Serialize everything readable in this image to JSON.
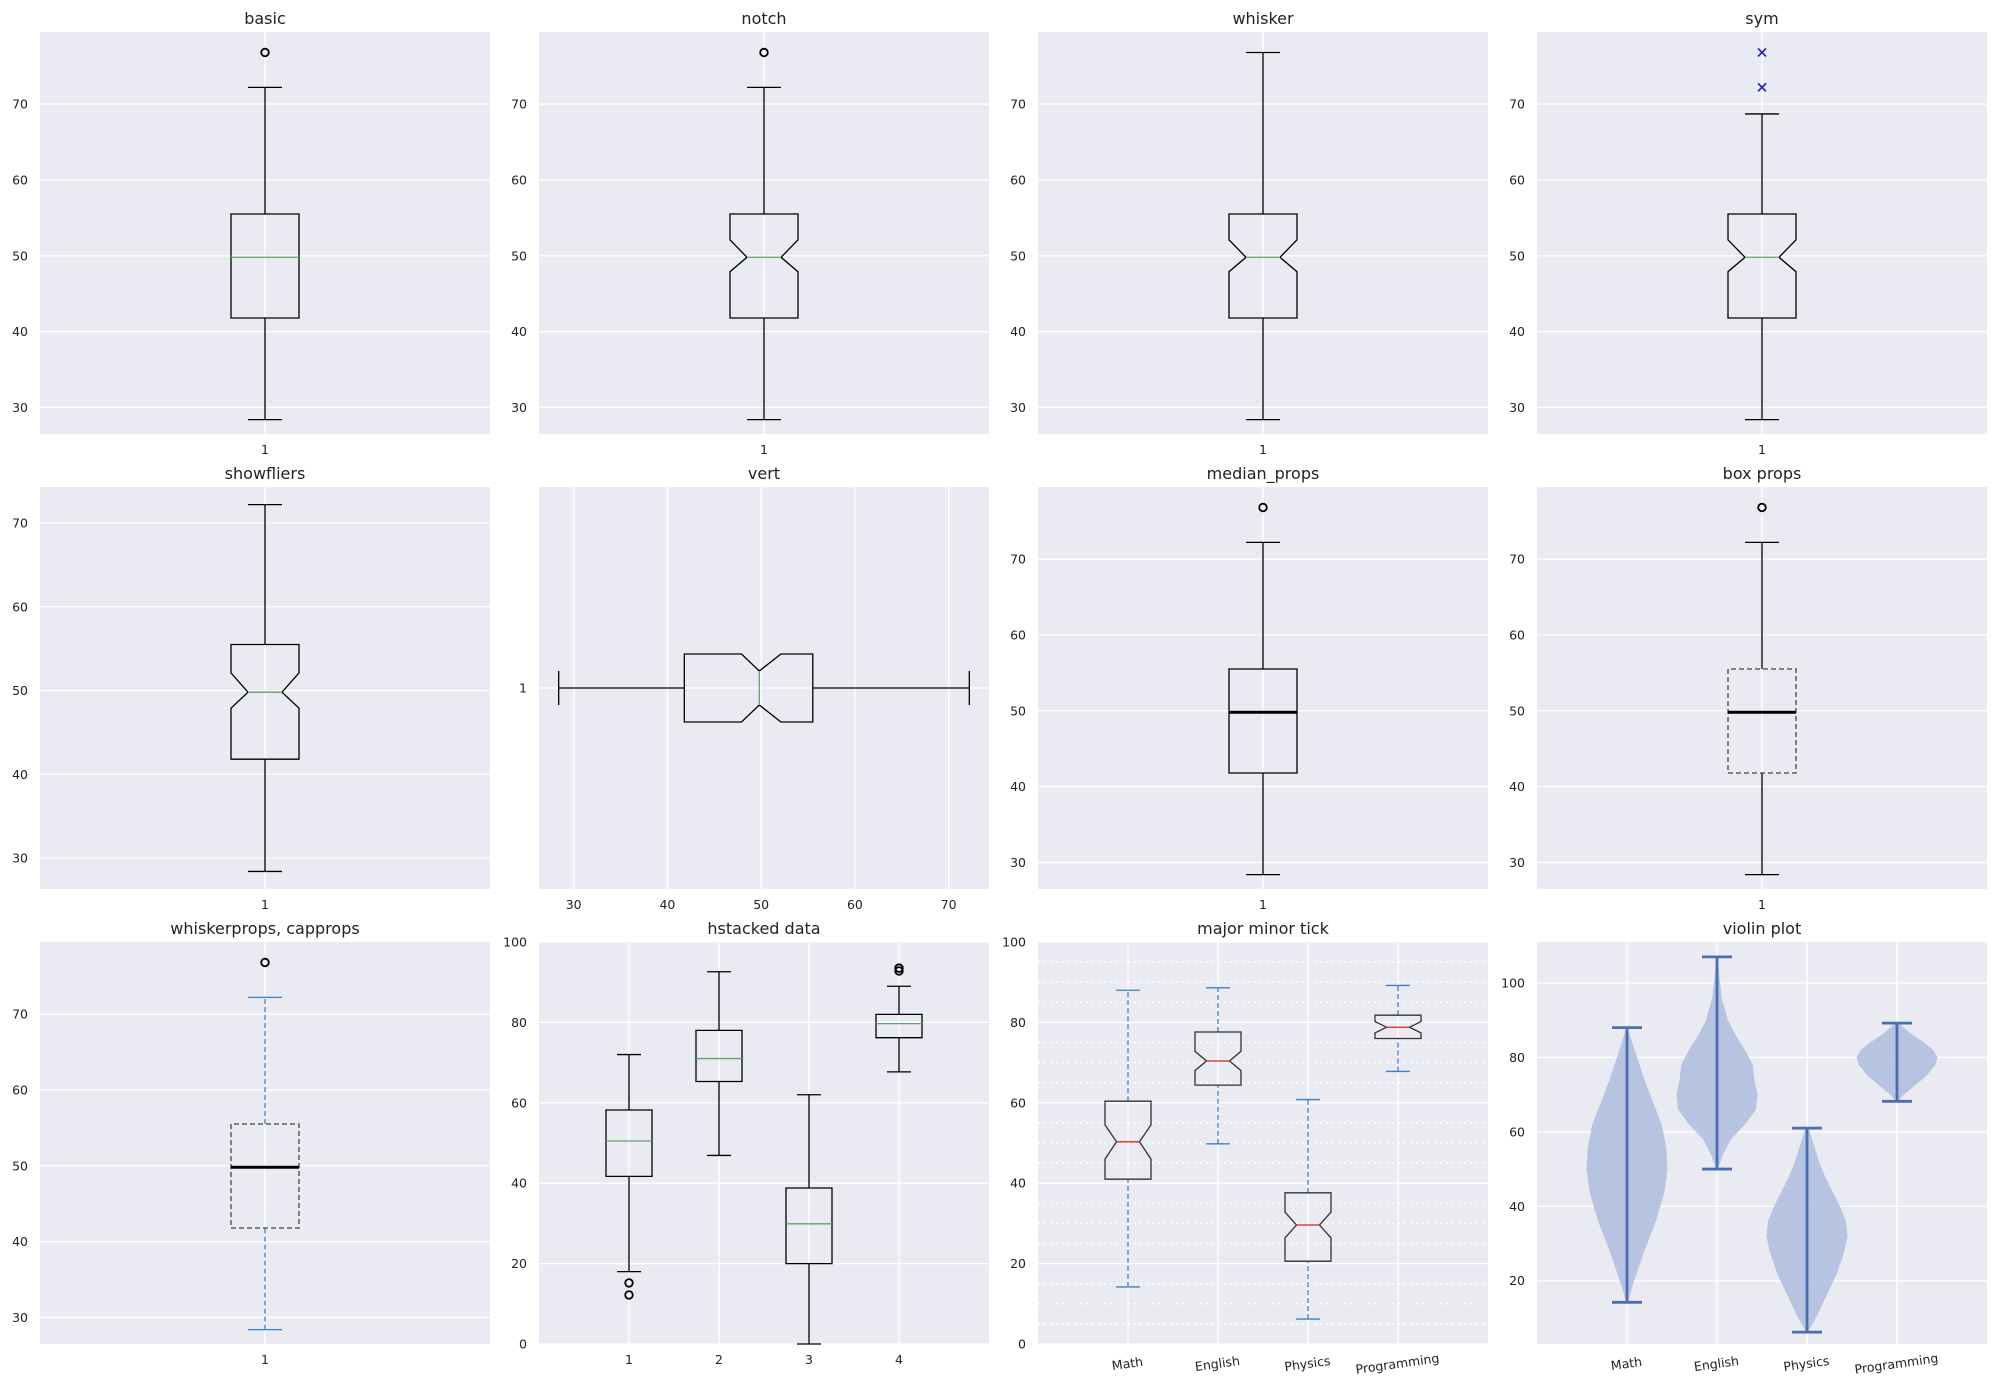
{
  "chart_data": [
    {
      "type": "boxplot",
      "title": "basic",
      "orientation": "vertical",
      "categories": [
        "1"
      ],
      "ylim": [
        26.5,
        79.5
      ],
      "yticks": [
        30,
        40,
        50,
        60,
        70
      ],
      "boxes": [
        {
          "whislo": 28.4,
          "q1": 41.8,
          "med": 49.8,
          "q3": 55.5,
          "whishi": 72.2,
          "fliers": [
            76.8
          ]
        }
      ],
      "notch": false,
      "flier_style": "circle",
      "median_color": "#5fa36a"
    },
    {
      "type": "boxplot",
      "title": "notch",
      "orientation": "vertical",
      "categories": [
        "1"
      ],
      "ylim": [
        26.5,
        79.5
      ],
      "yticks": [
        30,
        40,
        50,
        60,
        70
      ],
      "boxes": [
        {
          "whislo": 28.4,
          "q1": 41.8,
          "med": 49.8,
          "q3": 55.5,
          "whishi": 72.2,
          "fliers": [
            76.8
          ],
          "notch_lo": 47.9,
          "notch_hi": 52.1
        }
      ],
      "notch": true,
      "flier_style": "circle",
      "median_color": "#5fa36a"
    },
    {
      "type": "boxplot",
      "title": "whisker",
      "orientation": "vertical",
      "categories": [
        "1"
      ],
      "ylim": [
        26.5,
        79.5
      ],
      "yticks": [
        30,
        40,
        50,
        60,
        70
      ],
      "boxes": [
        {
          "whislo": 28.4,
          "q1": 41.8,
          "med": 49.8,
          "q3": 55.5,
          "whishi": 76.8,
          "fliers": [],
          "notch_lo": 47.9,
          "notch_hi": 52.1
        }
      ],
      "notch": true,
      "median_color": "#5fa36a"
    },
    {
      "type": "boxplot",
      "title": "sym",
      "orientation": "vertical",
      "categories": [
        "1"
      ],
      "ylim": [
        26.5,
        79.5
      ],
      "yticks": [
        30,
        40,
        50,
        60,
        70
      ],
      "boxes": [
        {
          "whislo": 28.4,
          "q1": 41.8,
          "med": 49.8,
          "q3": 55.5,
          "whishi": 68.7,
          "fliers": [
            72.2,
            76.8
          ],
          "notch_lo": 47.9,
          "notch_hi": 52.1
        }
      ],
      "notch": true,
      "flier_style": "x",
      "flier_color": "#1a1acc",
      "median_color": "#5fa36a"
    },
    {
      "type": "boxplot",
      "title": "showfliers",
      "orientation": "vertical",
      "categories": [
        "1"
      ],
      "ylim": [
        26.3,
        74.3
      ],
      "yticks": [
        30,
        40,
        50,
        60,
        70
      ],
      "boxes": [
        {
          "whislo": 28.4,
          "q1": 41.8,
          "med": 49.8,
          "q3": 55.5,
          "whishi": 72.2,
          "fliers": [],
          "notch_lo": 47.9,
          "notch_hi": 52.1
        }
      ],
      "notch": true,
      "median_color": "#5fa36a"
    },
    {
      "type": "boxplot",
      "title": "vert",
      "orientation": "horizontal",
      "categories": [
        "1"
      ],
      "xlim": [
        26.3,
        74.3
      ],
      "xticks": [
        30,
        40,
        50,
        60,
        70
      ],
      "boxes": [
        {
          "whislo": 28.4,
          "q1": 41.8,
          "med": 49.8,
          "q3": 55.5,
          "whishi": 72.2,
          "fliers": [],
          "notch_lo": 47.9,
          "notch_hi": 52.1
        }
      ],
      "notch": true,
      "median_color": "#5fa36a"
    },
    {
      "type": "boxplot",
      "title": "median_props",
      "orientation": "vertical",
      "categories": [
        "1"
      ],
      "ylim": [
        26.5,
        79.5
      ],
      "yticks": [
        30,
        40,
        50,
        60,
        70
      ],
      "boxes": [
        {
          "whislo": 28.4,
          "q1": 41.8,
          "med": 49.8,
          "q3": 55.5,
          "whishi": 72.2,
          "fliers": [
            76.8
          ]
        }
      ],
      "notch": false,
      "flier_style": "circle",
      "median_color": "#000000",
      "median_width": 3
    },
    {
      "type": "boxplot",
      "title": "box props",
      "orientation": "vertical",
      "categories": [
        "1"
      ],
      "ylim": [
        26.5,
        79.5
      ],
      "yticks": [
        30,
        40,
        50,
        60,
        70
      ],
      "boxes": [
        {
          "whislo": 28.4,
          "q1": 41.8,
          "med": 49.8,
          "q3": 55.5,
          "whishi": 72.2,
          "fliers": [
            76.8
          ]
        }
      ],
      "notch": false,
      "flier_style": "circle",
      "median_color": "#000000",
      "median_width": 3,
      "box_dashed": true,
      "box_color": "#444444"
    },
    {
      "type": "boxplot",
      "title": "whiskerprops, capprops",
      "orientation": "vertical",
      "categories": [
        "1"
      ],
      "ylim": [
        26.5,
        79.5
      ],
      "yticks": [
        30,
        40,
        50,
        60,
        70
      ],
      "boxes": [
        {
          "whislo": 28.4,
          "q1": 41.8,
          "med": 49.8,
          "q3": 55.5,
          "whishi": 72.2,
          "fliers": [
            76.8
          ]
        }
      ],
      "notch": false,
      "flier_style": "circle",
      "median_color": "#000000",
      "median_width": 3,
      "box_dashed": true,
      "box_color": "#444444",
      "whisker_color": "#3a80c8",
      "whisker_dashed": true
    },
    {
      "type": "boxplot",
      "title": "hstacked data",
      "orientation": "vertical",
      "categories": [
        "1",
        "2",
        "3",
        "4"
      ],
      "ylim": [
        0,
        100
      ],
      "yticks": [
        0,
        20,
        40,
        60,
        80,
        100
      ],
      "boxes": [
        {
          "whislo": 18.0,
          "q1": 41.7,
          "med": 50.5,
          "q3": 58.2,
          "whishi": 72.0,
          "fliers": [
            15.2,
            12.2
          ]
        },
        {
          "whislo": 46.9,
          "q1": 65.3,
          "med": 71.0,
          "q3": 78.0,
          "whishi": 92.6,
          "fliers": []
        },
        {
          "whislo": 0.0,
          "q1": 20.0,
          "med": 29.9,
          "q3": 38.8,
          "whishi": 62.0,
          "fliers": []
        },
        {
          "whislo": 67.7,
          "q1": 76.2,
          "med": 79.7,
          "q3": 82.0,
          "whishi": 89.0,
          "fliers": [
            92.8,
            93.5
          ]
        }
      ],
      "notch": false,
      "flier_style": "circle",
      "median_color": "#5fa36a"
    },
    {
      "type": "boxplot",
      "title": "major minor tick",
      "orientation": "vertical",
      "categories": [
        "Math",
        "English",
        "Physics",
        "Programming"
      ],
      "ylim": [
        0,
        100
      ],
      "yticks": [
        0,
        20,
        40,
        60,
        80,
        100
      ],
      "minor_grid_step": 5,
      "rotated_xticks": true,
      "boxes": [
        {
          "whislo": 14.2,
          "q1": 41.0,
          "med": 50.3,
          "q3": 60.4,
          "whishi": 88.0,
          "fliers": [],
          "notch_lo": 46.0,
          "notch_hi": 54.5
        },
        {
          "whislo": 49.8,
          "q1": 64.4,
          "med": 70.4,
          "q3": 77.6,
          "whishi": 88.6,
          "fliers": [],
          "notch_lo": 68.0,
          "notch_hi": 72.8
        },
        {
          "whislo": 6.2,
          "q1": 20.6,
          "med": 29.6,
          "q3": 37.6,
          "whishi": 60.8,
          "fliers": [],
          "notch_lo": 26.4,
          "notch_hi": 32.8
        },
        {
          "whislo": 67.8,
          "q1": 76.0,
          "med": 78.8,
          "q3": 81.8,
          "whishi": 89.2,
          "fliers": [],
          "notch_lo": 77.4,
          "notch_hi": 80.2
        }
      ],
      "notch": true,
      "median_color": "#e02020",
      "box_color": "#333333",
      "whisker_color": "#3a80c8",
      "whisker_dashed": true
    },
    {
      "type": "violin",
      "title": "violin plot",
      "categories": [
        "Math",
        "English",
        "Physics",
        "Programming"
      ],
      "ylim": [
        3,
        111
      ],
      "yticks": [
        20,
        40,
        60,
        80,
        100
      ],
      "rotated_xticks": true,
      "body_color": "#a9b9dc",
      "line_color": "#4a6eb0",
      "violins": [
        {
          "min": 14.2,
          "max": 88.0,
          "profile": [
            [
              14.2,
              0.5
            ],
            [
              20,
              5
            ],
            [
              28,
              12
            ],
            [
              36,
              20
            ],
            [
              44,
              26
            ],
            [
              50,
              28
            ],
            [
              56,
              27
            ],
            [
              62,
              24
            ],
            [
              68,
              18
            ],
            [
              74,
              12
            ],
            [
              80,
              7
            ],
            [
              86,
              2
            ],
            [
              88,
              0.5
            ]
          ]
        },
        {
          "min": 50.0,
          "max": 107.0,
          "profile": [
            [
              50,
              0.5
            ],
            [
              54,
              4
            ],
            [
              58,
              9
            ],
            [
              62,
              18
            ],
            [
              66,
              25
            ],
            [
              70,
              26
            ],
            [
              74,
              24
            ],
            [
              78,
              23
            ],
            [
              82,
              18
            ],
            [
              86,
              12
            ],
            [
              90,
              7
            ],
            [
              96,
              3
            ],
            [
              102,
              1.5
            ],
            [
              107,
              0.5
            ]
          ]
        },
        {
          "min": 6.2,
          "max": 61.0,
          "profile": [
            [
              6.2,
              0.5
            ],
            [
              10,
              6
            ],
            [
              16,
              13
            ],
            [
              22,
              20
            ],
            [
              28,
              25
            ],
            [
              32,
              27
            ],
            [
              36,
              26
            ],
            [
              40,
              22
            ],
            [
              44,
              17
            ],
            [
              48,
              12
            ],
            [
              52,
              8
            ],
            [
              56,
              5
            ],
            [
              61,
              1
            ]
          ]
        },
        {
          "min": 68.2,
          "max": 89.2,
          "profile": [
            [
              68.2,
              0.5
            ],
            [
              70,
              3
            ],
            [
              72,
              7
            ],
            [
              75,
              13
            ],
            [
              78,
              17
            ],
            [
              80,
              18
            ],
            [
              82,
              16
            ],
            [
              84,
              12
            ],
            [
              86,
              7
            ],
            [
              88,
              3
            ],
            [
              89.2,
              0.5
            ]
          ]
        }
      ]
    }
  ]
}
